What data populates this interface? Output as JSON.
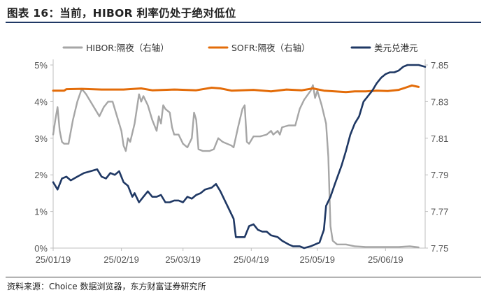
{
  "title": "图表 16：当前，HIBOR 利率仍处于绝对低位",
  "source": "资料来源：Choice 数据浏览器，东方财富证券研究所",
  "chart_data": {
    "type": "line",
    "xlabel": "",
    "ylabel_left": "",
    "ylabel_right": "",
    "x_ticks": [
      "25/01/19",
      "25/02/19",
      "25/03/19",
      "25/04/19",
      "25/05/19",
      "25/06/19"
    ],
    "x_range": [
      "2025-01-19",
      "2025-07-07"
    ],
    "y_left": {
      "range": [
        0,
        5
      ],
      "ticks": [
        "0%",
        "1%",
        "2%",
        "3%",
        "4%",
        "5%"
      ]
    },
    "y_right": {
      "range": [
        7.75,
        7.85
      ],
      "ticks": [
        "7.75",
        "7.77",
        "7.79",
        "7.81",
        "7.83",
        "7.85"
      ]
    },
    "grid": false,
    "legend_position": "top",
    "series": [
      {
        "name": "HIBOR:隔夜（右轴）",
        "axis": "left",
        "color": "#a6a6a6",
        "points": [
          [
            "2025-01-19",
            3.1
          ],
          [
            "2025-01-20",
            3.5
          ],
          [
            "2025-01-21",
            3.85
          ],
          [
            "2025-01-22",
            3.2
          ],
          [
            "2025-01-23",
            2.9
          ],
          [
            "2025-01-24",
            2.85
          ],
          [
            "2025-01-26",
            2.85
          ],
          [
            "2025-01-28",
            3.5
          ],
          [
            "2025-01-30",
            4.0
          ],
          [
            "2025-02-01",
            4.35
          ],
          [
            "2025-02-03",
            4.2
          ],
          [
            "2025-02-05",
            4.0
          ],
          [
            "2025-02-07",
            3.8
          ],
          [
            "2025-02-09",
            3.6
          ],
          [
            "2025-02-11",
            3.85
          ],
          [
            "2025-02-13",
            4.0
          ],
          [
            "2025-02-15",
            4.0
          ],
          [
            "2025-02-17",
            3.6
          ],
          [
            "2025-02-19",
            3.2
          ],
          [
            "2025-02-20",
            2.8
          ],
          [
            "2025-02-21",
            2.65
          ],
          [
            "2025-02-22",
            3.0
          ],
          [
            "2025-02-23",
            2.9
          ],
          [
            "2025-02-25",
            3.4
          ],
          [
            "2025-02-27",
            4.2
          ],
          [
            "2025-02-28",
            4.0
          ],
          [
            "2025-03-01",
            4.15
          ],
          [
            "2025-03-03",
            3.9
          ],
          [
            "2025-03-05",
            3.5
          ],
          [
            "2025-03-07",
            3.2
          ],
          [
            "2025-03-08",
            3.6
          ],
          [
            "2025-03-09",
            3.4
          ],
          [
            "2025-03-10",
            3.9
          ],
          [
            "2025-03-11",
            3.8
          ],
          [
            "2025-03-13",
            3.7
          ],
          [
            "2025-03-14",
            3.3
          ],
          [
            "2025-03-15",
            3.1
          ],
          [
            "2025-03-17",
            3.1
          ],
          [
            "2025-03-19",
            2.85
          ],
          [
            "2025-03-21",
            2.75
          ],
          [
            "2025-03-23",
            3.0
          ],
          [
            "2025-03-24",
            3.7
          ],
          [
            "2025-03-25",
            3.5
          ],
          [
            "2025-03-26",
            2.7
          ],
          [
            "2025-03-28",
            2.65
          ],
          [
            "2025-03-31",
            2.65
          ],
          [
            "2025-04-02",
            2.7
          ],
          [
            "2025-04-04",
            3.0
          ],
          [
            "2025-04-06",
            2.9
          ],
          [
            "2025-04-08",
            2.85
          ],
          [
            "2025-04-10",
            2.8
          ],
          [
            "2025-04-11",
            2.75
          ],
          [
            "2025-04-13",
            3.3
          ],
          [
            "2025-04-15",
            3.8
          ],
          [
            "2025-04-16",
            3.9
          ],
          [
            "2025-04-17",
            2.9
          ],
          [
            "2025-04-18",
            2.85
          ],
          [
            "2025-04-20",
            3.05
          ],
          [
            "2025-04-23",
            3.05
          ],
          [
            "2025-04-26",
            3.1
          ],
          [
            "2025-04-28",
            3.2
          ],
          [
            "2025-04-29",
            3.1
          ],
          [
            "2025-05-01",
            3.2
          ],
          [
            "2025-05-02",
            3.1
          ],
          [
            "2025-05-03",
            3.3
          ],
          [
            "2025-05-06",
            3.35
          ],
          [
            "2025-05-09",
            3.35
          ],
          [
            "2025-05-11",
            3.8
          ],
          [
            "2025-05-13",
            4.05
          ],
          [
            "2025-05-16",
            4.3
          ],
          [
            "2025-05-17",
            4.45
          ],
          [
            "2025-05-18",
            4.1
          ],
          [
            "2025-05-19",
            4.3
          ],
          [
            "2025-05-21",
            3.9
          ],
          [
            "2025-05-23",
            3.4
          ],
          [
            "2025-05-24",
            2.5
          ],
          [
            "2025-05-25",
            0.6
          ],
          [
            "2025-05-26",
            0.2
          ],
          [
            "2025-05-28",
            0.1
          ],
          [
            "2025-06-01",
            0.1
          ],
          [
            "2025-06-05",
            0.05
          ],
          [
            "2025-06-10",
            0.03
          ],
          [
            "2025-06-15",
            0.03
          ],
          [
            "2025-06-20",
            0.03
          ],
          [
            "2025-06-25",
            0.03
          ],
          [
            "2025-06-30",
            0.05
          ],
          [
            "2025-07-04",
            0.02
          ]
        ]
      },
      {
        "name": "SOFR:隔夜（右轴）",
        "axis": "left",
        "color": "#e36c09",
        "points": [
          [
            "2025-01-19",
            4.3
          ],
          [
            "2025-01-24",
            4.3
          ],
          [
            "2025-01-25",
            4.34
          ],
          [
            "2025-02-01",
            4.35
          ],
          [
            "2025-02-10",
            4.33
          ],
          [
            "2025-02-20",
            4.33
          ],
          [
            "2025-02-28",
            4.36
          ],
          [
            "2025-03-05",
            4.31
          ],
          [
            "2025-03-15",
            4.33
          ],
          [
            "2025-03-25",
            4.31
          ],
          [
            "2025-04-01",
            4.38
          ],
          [
            "2025-04-05",
            4.36
          ],
          [
            "2025-04-10",
            4.3
          ],
          [
            "2025-04-20",
            4.32
          ],
          [
            "2025-04-28",
            4.28
          ],
          [
            "2025-05-05",
            4.33
          ],
          [
            "2025-05-12",
            4.31
          ],
          [
            "2025-05-17",
            4.36
          ],
          [
            "2025-05-22",
            4.3
          ],
          [
            "2025-06-01",
            4.26
          ],
          [
            "2025-06-05",
            4.28
          ],
          [
            "2025-06-10",
            4.28
          ],
          [
            "2025-06-15",
            4.3
          ],
          [
            "2025-06-20",
            4.29
          ],
          [
            "2025-06-25",
            4.32
          ],
          [
            "2025-06-28",
            4.38
          ],
          [
            "2025-07-01",
            4.44
          ],
          [
            "2025-07-04",
            4.4
          ]
        ]
      },
      {
        "name": "美元兑港元",
        "axis": "right",
        "color": "#1f3864",
        "points": [
          [
            "2025-01-19",
            7.786
          ],
          [
            "2025-01-21",
            7.782
          ],
          [
            "2025-01-23",
            7.788
          ],
          [
            "2025-01-25",
            7.789
          ],
          [
            "2025-01-27",
            7.787
          ],
          [
            "2025-01-30",
            7.789
          ],
          [
            "2025-02-02",
            7.791
          ],
          [
            "2025-02-05",
            7.792
          ],
          [
            "2025-02-08",
            7.793
          ],
          [
            "2025-02-10",
            7.789
          ],
          [
            "2025-02-12",
            7.788
          ],
          [
            "2025-02-14",
            7.791
          ],
          [
            "2025-02-16",
            7.79
          ],
          [
            "2025-02-18",
            7.792
          ],
          [
            "2025-02-20",
            7.786
          ],
          [
            "2025-02-22",
            7.784
          ],
          [
            "2025-02-24",
            7.778
          ],
          [
            "2025-02-25",
            7.78
          ],
          [
            "2025-02-27",
            7.775
          ],
          [
            "2025-03-01",
            7.778
          ],
          [
            "2025-03-03",
            7.781
          ],
          [
            "2025-03-05",
            7.778
          ],
          [
            "2025-03-07",
            7.778
          ],
          [
            "2025-03-09",
            7.779
          ],
          [
            "2025-03-11",
            7.775
          ],
          [
            "2025-03-13",
            7.775
          ],
          [
            "2025-03-15",
            7.776
          ],
          [
            "2025-03-17",
            7.776
          ],
          [
            "2025-03-19",
            7.775
          ],
          [
            "2025-03-21",
            7.778
          ],
          [
            "2025-03-23",
            7.777
          ],
          [
            "2025-03-25",
            7.779
          ],
          [
            "2025-03-27",
            7.78
          ],
          [
            "2025-03-29",
            7.782
          ],
          [
            "2025-04-01",
            7.783
          ],
          [
            "2025-04-03",
            7.785
          ],
          [
            "2025-04-05",
            7.781
          ],
          [
            "2025-04-07",
            7.776
          ],
          [
            "2025-04-09",
            7.771
          ],
          [
            "2025-04-11",
            7.766
          ],
          [
            "2025-04-12",
            7.756
          ],
          [
            "2025-04-14",
            7.756
          ],
          [
            "2025-04-16",
            7.756
          ],
          [
            "2025-04-18",
            7.762
          ],
          [
            "2025-04-20",
            7.763
          ],
          [
            "2025-04-22",
            7.76
          ],
          [
            "2025-04-24",
            7.759
          ],
          [
            "2025-04-26",
            7.759
          ],
          [
            "2025-04-28",
            7.757
          ],
          [
            "2025-05-01",
            7.756
          ],
          [
            "2025-05-03",
            7.754
          ],
          [
            "2025-05-06",
            7.752
          ],
          [
            "2025-05-08",
            7.751
          ],
          [
            "2025-05-11",
            7.751
          ],
          [
            "2025-05-13",
            7.75
          ],
          [
            "2025-05-16",
            7.751
          ],
          [
            "2025-05-20",
            7.753
          ],
          [
            "2025-05-22",
            7.76
          ],
          [
            "2025-05-23",
            7.773
          ],
          [
            "2025-05-25",
            7.778
          ],
          [
            "2025-05-27",
            7.785
          ],
          [
            "2025-05-30",
            7.795
          ],
          [
            "2025-06-01",
            7.803
          ],
          [
            "2025-06-03",
            7.812
          ],
          [
            "2025-06-05",
            7.818
          ],
          [
            "2025-06-07",
            7.822
          ],
          [
            "2025-06-09",
            7.83
          ],
          [
            "2025-06-11",
            7.833
          ],
          [
            "2025-06-13",
            7.836
          ],
          [
            "2025-06-15",
            7.84
          ],
          [
            "2025-06-17",
            7.843
          ],
          [
            "2025-06-19",
            7.845
          ],
          [
            "2025-06-21",
            7.846
          ],
          [
            "2025-06-23",
            7.846
          ],
          [
            "2025-06-25",
            7.847
          ],
          [
            "2025-06-27",
            7.849
          ],
          [
            "2025-06-29",
            7.85
          ],
          [
            "2025-07-01",
            7.85
          ],
          [
            "2025-07-04",
            7.85
          ],
          [
            "2025-07-07",
            7.849
          ]
        ]
      }
    ]
  }
}
